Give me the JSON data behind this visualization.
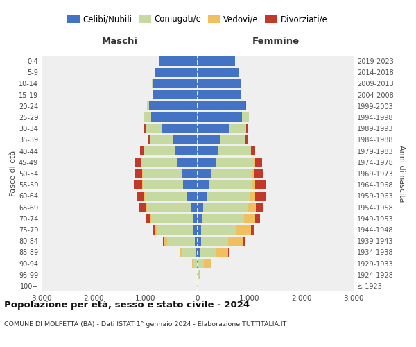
{
  "age_groups": [
    "100+",
    "95-99",
    "90-94",
    "85-89",
    "80-84",
    "75-79",
    "70-74",
    "65-69",
    "60-64",
    "55-59",
    "50-54",
    "45-49",
    "40-44",
    "35-39",
    "30-34",
    "25-29",
    "20-24",
    "15-19",
    "10-14",
    "5-9",
    "0-4"
  ],
  "birth_years": [
    "≤ 1923",
    "1924-1928",
    "1929-1933",
    "1934-1938",
    "1939-1943",
    "1944-1948",
    "1949-1953",
    "1954-1958",
    "1959-1963",
    "1964-1968",
    "1969-1973",
    "1974-1978",
    "1979-1983",
    "1984-1988",
    "1989-1993",
    "1994-1998",
    "1999-2003",
    "2004-2008",
    "2009-2013",
    "2014-2018",
    "2019-2023"
  ],
  "m_cel": [
    5,
    5,
    10,
    30,
    60,
    80,
    100,
    130,
    200,
    280,
    310,
    390,
    430,
    480,
    680,
    900,
    940,
    860,
    870,
    820,
    750
  ],
  "m_con": [
    2,
    8,
    80,
    280,
    530,
    700,
    800,
    850,
    820,
    780,
    750,
    700,
    600,
    430,
    320,
    130,
    30,
    10,
    5,
    2,
    1
  ],
  "m_ved": [
    0,
    2,
    15,
    30,
    50,
    30,
    20,
    15,
    10,
    8,
    5,
    3,
    2,
    1,
    1,
    0,
    0,
    0,
    0,
    0,
    0
  ],
  "m_div": [
    0,
    0,
    3,
    10,
    25,
    50,
    80,
    120,
    150,
    160,
    130,
    110,
    70,
    50,
    25,
    10,
    3,
    1,
    0,
    0,
    0
  ],
  "f_nub": [
    5,
    5,
    15,
    40,
    60,
    70,
    90,
    110,
    170,
    230,
    270,
    360,
    390,
    440,
    600,
    850,
    900,
    820,
    820,
    780,
    720
  ],
  "f_con": [
    2,
    15,
    100,
    300,
    520,
    680,
    800,
    850,
    840,
    810,
    780,
    730,
    630,
    460,
    330,
    130,
    25,
    10,
    4,
    2,
    1
  ],
  "f_ved": [
    5,
    30,
    150,
    250,
    300,
    270,
    220,
    160,
    100,
    60,
    40,
    20,
    10,
    5,
    3,
    1,
    0,
    0,
    0,
    0,
    0
  ],
  "f_div": [
    0,
    0,
    5,
    20,
    30,
    60,
    90,
    130,
    200,
    200,
    170,
    130,
    80,
    60,
    30,
    10,
    3,
    1,
    0,
    0,
    0
  ],
  "col_cel": "#4472c4",
  "col_con": "#c5d9a0",
  "col_ved": "#f0c060",
  "col_div": "#c0392b",
  "bg_color": "#ffffff",
  "plot_bg": "#efefef",
  "title_main": "Popolazione per età, sesso e stato civile - 2024",
  "title_sub": "COMUNE DI MOLFETTA (BA) - Dati ISTAT 1° gennaio 2024 - Elaborazione TUTTITALIA.IT",
  "label_maschi": "Maschi",
  "label_femmine": "Femmine",
  "ylabel_left": "Fasce di età",
  "ylabel_right": "Anni di nascita",
  "legend_labels": [
    "Celibi/Nubili",
    "Coniugati/e",
    "Vedovi/e",
    "Divorziati/e"
  ],
  "xlim": 3000,
  "xtick_vals": [
    -3000,
    -2000,
    -1000,
    0,
    1000,
    2000,
    3000
  ],
  "xtick_labs": [
    "3.000",
    "2.000",
    "1.000",
    "0",
    "1.000",
    "2.000",
    "3.000"
  ]
}
